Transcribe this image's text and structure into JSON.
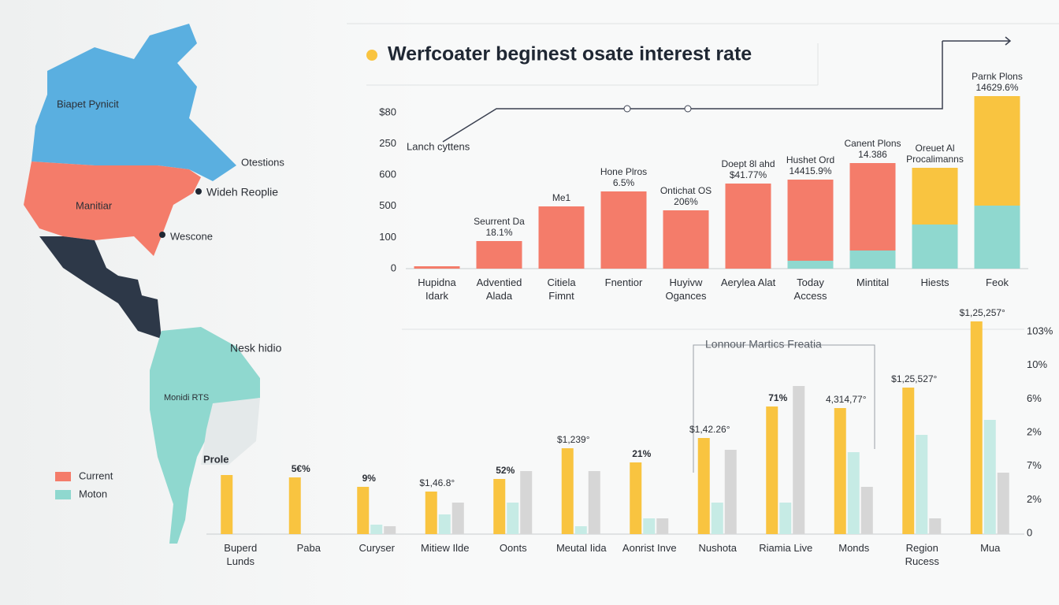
{
  "map": {
    "labels": [
      "Biapet Pynicit",
      "Manitiar",
      "Otestions",
      "Wideh Reoplie",
      "Wescone",
      "Nesk hidio",
      "Monidi RTS",
      "Prole"
    ]
  },
  "legend": [
    {
      "name": "Current",
      "color": "#f47c6a"
    },
    {
      "name": "Moton",
      "color": "#8fd8cf"
    }
  ],
  "chart_data": [
    {
      "type": "stacked_bar",
      "title": "Werfcoater beginest osate interest rate",
      "annotation": "Lanch cyttens",
      "axis_labels": [
        "$80",
        "250",
        "600",
        "500",
        "100",
        "0"
      ],
      "categories": [
        "Hupidna Idark",
        "Adventied Alada",
        "Citiela Fimnt",
        "Fnentior",
        "Huyivw Ogances",
        "Aerylea Alat",
        "Today Access",
        "Mintital",
        "Hiests",
        "Feok"
      ],
      "ylim": [
        0,
        241
      ],
      "series": [
        {
          "color": "#8fd8cf",
          "values": [
            null,
            null,
            null,
            null,
            null,
            null,
            10,
            23,
            56,
            80
          ]
        },
        {
          "color": "#f47c6a",
          "values": [
            3,
            35,
            79,
            98,
            74,
            108,
            103,
            111,
            null,
            null
          ]
        },
        {
          "color": "#f9c440",
          "values": [
            null,
            null,
            null,
            null,
            null,
            null,
            null,
            null,
            72,
            139
          ]
        }
      ],
      "bar_labels": [
        null,
        "Seurrent Da 18.1%",
        "Me1",
        "Hone Plros 6.5%",
        "Ontichat OS 206%",
        "Doept 8l ahd $41.77%",
        "Hushet Ord 14415.9%",
        "Canent Plons 14.386",
        "Oreuet Al Procalimanns",
        "Parnk Plons 14629.6%"
      ]
    },
    {
      "type": "grouped_bar",
      "annotation": "Lonnour Martics Freatia",
      "axis_labels": [
        "103%",
        "10%",
        "6%",
        "2%",
        "7%",
        "2%",
        "0"
      ],
      "categories": [
        "Buperd Lunds",
        "Paba",
        "Curyser",
        "Mitiew Ilde",
        "Oonts",
        "Meutal Iida",
        "Aonrist Inve",
        "Nushota",
        "Riamia Live",
        "Monds",
        "Region Rucess",
        "Mua"
      ],
      "ylim": [
        0,
        270
      ],
      "series": [
        {
          "color": "#f9c440",
          "values": [
            75,
            72,
            60,
            54,
            70,
            109,
            91,
            122,
            162,
            160,
            186,
            270
          ]
        },
        {
          "color": "#c6ebe5",
          "values": [
            null,
            null,
            12,
            25,
            40,
            10,
            20,
            40,
            40,
            104,
            126,
            145
          ]
        },
        {
          "color": "#d6d6d6",
          "values": [
            null,
            null,
            10,
            40,
            80,
            80,
            20,
            107,
            188,
            60,
            20,
            78
          ]
        }
      ],
      "bar_labels": [
        null,
        "5€%",
        "9%",
        "$1,46.8°",
        "52%",
        "$1,239°",
        "21%",
        "$1,42.26°",
        "71%",
        "4,314,77°",
        "$1,25,527°",
        "$1,25,257°"
      ]
    }
  ]
}
